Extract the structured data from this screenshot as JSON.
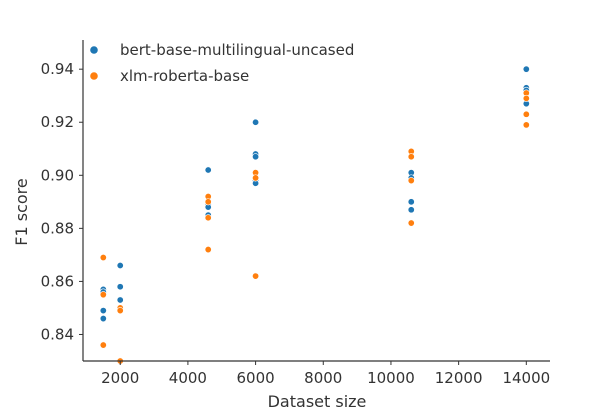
{
  "chart_data": {
    "type": "scatter",
    "xlabel": "Dataset size",
    "ylabel": "F1 score",
    "xlim": [
      900,
      14700
    ],
    "ylim": [
      0.83,
      0.951
    ],
    "xticks": [
      2000,
      4000,
      6000,
      8000,
      10000,
      12000,
      14000
    ],
    "xtick_labels": [
      "2000",
      "4000",
      "6000",
      "8000",
      "10000",
      "12000",
      "14000"
    ],
    "yticks": [
      0.84,
      0.86,
      0.88,
      0.9,
      0.92,
      0.94
    ],
    "ytick_labels": [
      "0.84",
      "0.86",
      "0.88",
      "0.90",
      "0.92",
      "0.94"
    ],
    "grid": false,
    "legend_position": "top-left",
    "series": [
      {
        "name": "bert-base-multilingual-uncased",
        "color": "#1f77b4",
        "points": [
          {
            "x": 1500,
            "y": 0.857
          },
          {
            "x": 1500,
            "y": 0.856
          },
          {
            "x": 1500,
            "y": 0.849
          },
          {
            "x": 1500,
            "y": 0.846
          },
          {
            "x": 2000,
            "y": 0.866
          },
          {
            "x": 2000,
            "y": 0.858
          },
          {
            "x": 2000,
            "y": 0.853
          },
          {
            "x": 4600,
            "y": 0.902
          },
          {
            "x": 4600,
            "y": 0.889
          },
          {
            "x": 4600,
            "y": 0.888
          },
          {
            "x": 4600,
            "y": 0.885
          },
          {
            "x": 6000,
            "y": 0.92
          },
          {
            "x": 6000,
            "y": 0.908
          },
          {
            "x": 6000,
            "y": 0.907
          },
          {
            "x": 6000,
            "y": 0.898
          },
          {
            "x": 6000,
            "y": 0.897
          },
          {
            "x": 10600,
            "y": 0.901
          },
          {
            "x": 10600,
            "y": 0.899
          },
          {
            "x": 10600,
            "y": 0.89
          },
          {
            "x": 10600,
            "y": 0.887
          },
          {
            "x": 14000,
            "y": 0.94
          },
          {
            "x": 14000,
            "y": 0.933
          },
          {
            "x": 14000,
            "y": 0.932
          },
          {
            "x": 14000,
            "y": 0.929
          },
          {
            "x": 14000,
            "y": 0.927
          }
        ]
      },
      {
        "name": "xlm-roberta-base",
        "color": "#ff7f0e",
        "points": [
          {
            "x": 1500,
            "y": 0.869
          },
          {
            "x": 1500,
            "y": 0.855
          },
          {
            "x": 1500,
            "y": 0.836
          },
          {
            "x": 2000,
            "y": 0.85
          },
          {
            "x": 2000,
            "y": 0.849
          },
          {
            "x": 2000,
            "y": 0.83
          },
          {
            "x": 4600,
            "y": 0.892
          },
          {
            "x": 4600,
            "y": 0.89
          },
          {
            "x": 4600,
            "y": 0.884
          },
          {
            "x": 4600,
            "y": 0.872
          },
          {
            "x": 6000,
            "y": 0.901
          },
          {
            "x": 6000,
            "y": 0.899
          },
          {
            "x": 6000,
            "y": 0.862
          },
          {
            "x": 10600,
            "y": 0.909
          },
          {
            "x": 10600,
            "y": 0.907
          },
          {
            "x": 10600,
            "y": 0.898
          },
          {
            "x": 10600,
            "y": 0.882
          },
          {
            "x": 14000,
            "y": 0.931
          },
          {
            "x": 14000,
            "y": 0.929
          },
          {
            "x": 14000,
            "y": 0.923
          },
          {
            "x": 14000,
            "y": 0.919
          }
        ]
      }
    ]
  }
}
